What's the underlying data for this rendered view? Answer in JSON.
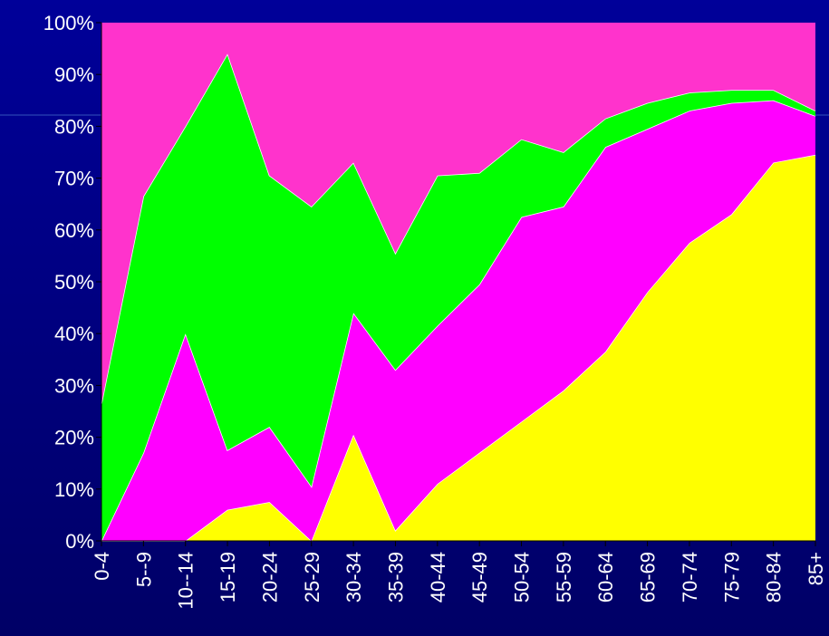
{
  "chart_data": {
    "type": "stacked_area",
    "categories": [
      "0-4",
      "5--9",
      "10--14",
      "15-19",
      "20-24",
      "25-29",
      "30-34",
      "35-39",
      "40-44",
      "45-49",
      "50-54",
      "55-59",
      "60-64",
      "65-69",
      "70-74",
      "75-79",
      "80-84",
      "85+"
    ],
    "series": [
      {
        "color": "#ffff00",
        "values": [
          0,
          0,
          0,
          6,
          7.5,
          0,
          20.5,
          2,
          11,
          17,
          23,
          29,
          36.5,
          48,
          57.5,
          63,
          73,
          74.5
        ]
      },
      {
        "color": "#ff00ff",
        "values": [
          0,
          17,
          40,
          11.5,
          14.5,
          10.5,
          23.5,
          31,
          30.5,
          32.5,
          39.5,
          35.5,
          39.5,
          31.5,
          25.5,
          21.5,
          12,
          7.5
        ]
      },
      {
        "color": "#00ff00",
        "values": [
          26.5,
          49.5,
          40,
          76.5,
          48.5,
          54,
          29,
          22.5,
          29,
          21.5,
          15,
          10.5,
          5.5,
          5,
          3.5,
          2.5,
          2,
          1
        ]
      },
      {
        "color": "#ff33cc",
        "values": [
          73.5,
          33.5,
          20,
          6,
          29.5,
          35.5,
          27,
          44.5,
          29.5,
          29,
          22.5,
          25,
          18.5,
          15.5,
          13.5,
          13,
          13,
          17
        ]
      }
    ],
    "ylim": [
      0,
      100
    ],
    "yticks": [
      {
        "value": 0,
        "label": "0%"
      },
      {
        "value": 10,
        "label": "10%"
      },
      {
        "value": 20,
        "label": "20%"
      },
      {
        "value": 30,
        "label": "30%"
      },
      {
        "value": 40,
        "label": "40%"
      },
      {
        "value": 50,
        "label": "50%"
      },
      {
        "value": 60,
        "label": "60%"
      },
      {
        "value": 70,
        "label": "70%"
      },
      {
        "value": 80,
        "label": "80%"
      },
      {
        "value": 90,
        "label": "90%"
      },
      {
        "value": 100,
        "label": "100%"
      }
    ]
  }
}
